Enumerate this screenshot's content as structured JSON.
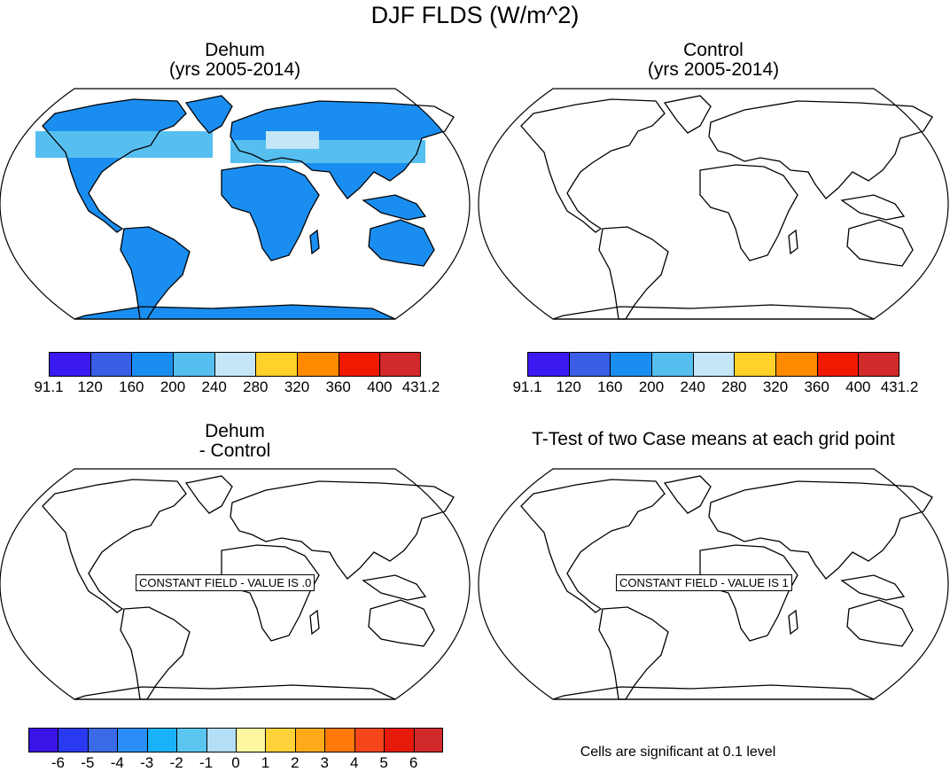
{
  "figure_title": "DJF FLDS (W/m^2)",
  "panels": {
    "top_left": {
      "title_line1": "Dehum",
      "title_line2": "(yrs 2005-2014)"
    },
    "top_right": {
      "title_line1": "Control",
      "title_line2": "(yrs 2005-2014)"
    },
    "bottom_left": {
      "title_line1": "Dehum",
      "title_line2": "- Control",
      "constant_field_label": "CONSTANT FIELD - VALUE IS .0"
    },
    "bottom_right": {
      "title": "T-Test of two Case means at each grid point",
      "constant_field_label": "CONSTANT FIELD - VALUE IS 1",
      "note": "Cells are significant at 0.1 level"
    }
  },
  "chart_data": [
    {
      "type": "heatmap",
      "projection": "Robinson",
      "title": "Dehum (yrs 2005-2014)",
      "variable": "DJF FLDS",
      "units": "W/m^2",
      "colorbar": {
        "labels": [
          "91.1",
          "120",
          "160",
          "200",
          "240",
          "280",
          "320",
          "360",
          "400",
          "431.2"
        ],
        "boundaries": [
          91.1,
          120,
          160,
          200,
          240,
          280,
          320,
          360,
          400,
          431.2
        ],
        "colors": [
          "#3a1af0",
          "#3a5ee6",
          "#1a8ef0",
          "#56bff0",
          "#c4e6f6",
          "#ffd12a",
          "#ff8a00",
          "#f01a00",
          "#d22a2a"
        ]
      }
    },
    {
      "type": "heatmap",
      "projection": "Robinson",
      "title": "Control (yrs 2005-2014)",
      "variable": "DJF FLDS",
      "units": "W/m^2",
      "colorbar": {
        "labels": [
          "91.1",
          "120",
          "160",
          "200",
          "240",
          "280",
          "320",
          "360",
          "400",
          "431.2"
        ],
        "boundaries": [
          91.1,
          120,
          160,
          200,
          240,
          280,
          320,
          360,
          400,
          431.2
        ],
        "colors": [
          "#3a1af0",
          "#3a5ee6",
          "#1a8ef0",
          "#56bff0",
          "#c4e6f6",
          "#ffd12a",
          "#ff8a00",
          "#f01a00",
          "#d22a2a"
        ]
      }
    },
    {
      "type": "heatmap",
      "projection": "Robinson",
      "title": "Dehum - Control",
      "constant_value": 0,
      "colorbar": {
        "labels": [
          "-6",
          "-5",
          "-4",
          "-3",
          "-2",
          "-1",
          "0",
          "1",
          "2",
          "3",
          "4",
          "5",
          "6"
        ],
        "boundaries": [
          -6,
          -5,
          -4,
          -3,
          -2,
          -1,
          0,
          1,
          2,
          3,
          4,
          5,
          6
        ],
        "colors": [
          "#3a14e6",
          "#2a3af0",
          "#3a6ae6",
          "#2a8ef6",
          "#1ab2f6",
          "#5ac6f0",
          "#b4def6",
          "#fff6a0",
          "#ffd23a",
          "#ffaa1a",
          "#ff7a0a",
          "#f6461a",
          "#e61a0a",
          "#d22a2a"
        ]
      }
    },
    {
      "type": "heatmap",
      "projection": "Robinson",
      "title": "T-Test of two Case means at each grid point",
      "constant_value": 1
    }
  ]
}
